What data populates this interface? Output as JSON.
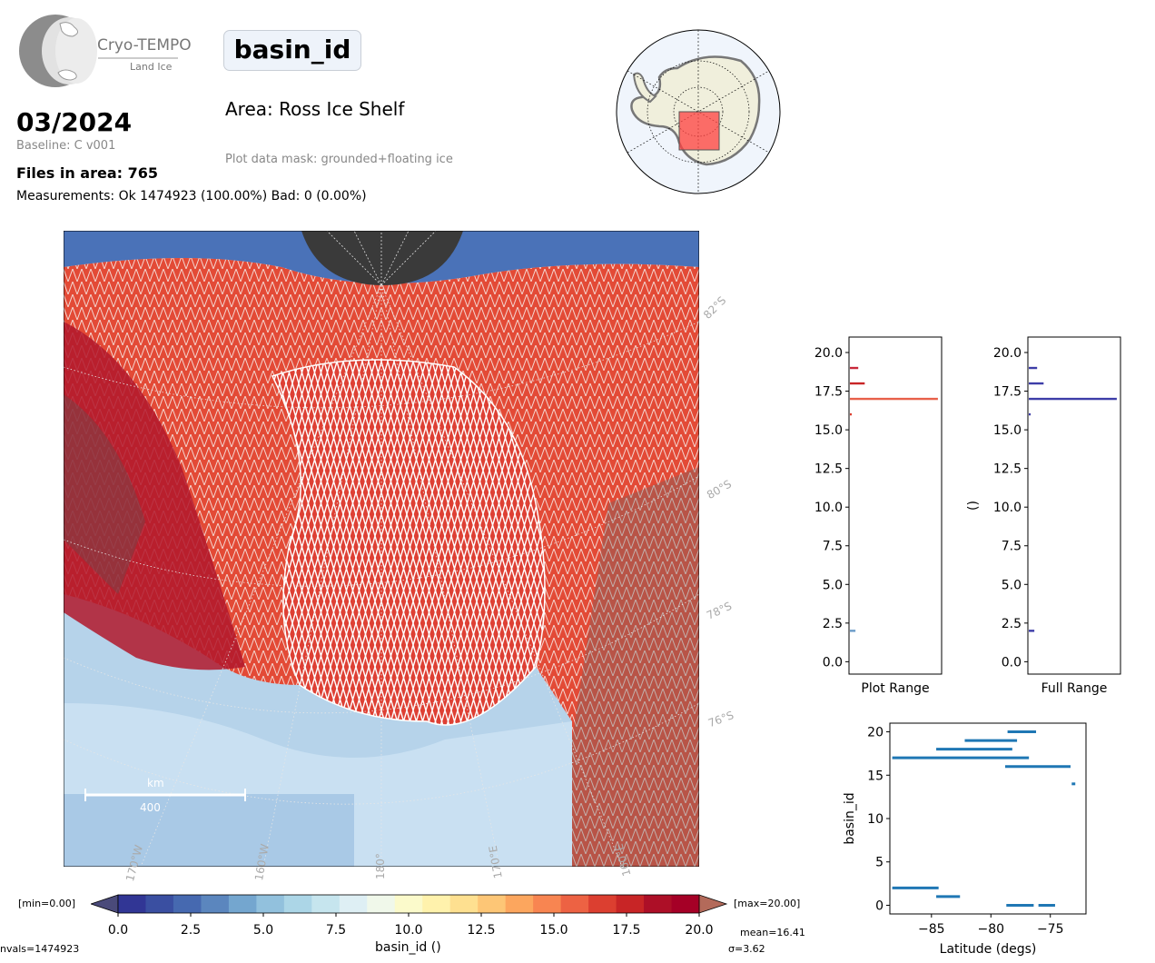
{
  "header": {
    "logo_text": "Cryo-TEMPO",
    "logo_subtext": "Land Ice",
    "variable": "basin_id",
    "date": "03/2024",
    "baseline": "Baseline: C v001",
    "files_in_area": "Files in area: 765",
    "measurements": "Measurements: Ok 1474923 (100.00%) Bad: 0 (0.00%)",
    "area": "Area: Ross Ice Shelf",
    "mask": "Plot data mask: grounded+floating ice"
  },
  "map": {
    "lat_labels": [
      "82°S",
      "80°S",
      "78°S",
      "76°S"
    ],
    "lon_labels": [
      "170°W",
      "160°W",
      "180°",
      "170°E",
      "160°E"
    ],
    "scalebar_unit": "km",
    "scalebar_value": "400"
  },
  "colorbar": {
    "min_label": "[min=0.00]",
    "max_label": "[max=20.00]",
    "ticks": [
      "0.0",
      "2.5",
      "5.0",
      "7.5",
      "10.0",
      "12.5",
      "15.0",
      "17.5",
      "20.0"
    ],
    "label": "basin_id ()",
    "colors": [
      "#313695",
      "#3a4fa1",
      "#4669b0",
      "#5b86be",
      "#74a6cf",
      "#92c1dd",
      "#acd6e7",
      "#c6e5ee",
      "#deeff4",
      "#f0f8ea",
      "#fbfacb",
      "#fff2ac",
      "#fee090",
      "#fdc676",
      "#fca65e",
      "#f88551",
      "#ed6243",
      "#dc3f30",
      "#c82526",
      "#ad0f27",
      "#a50026"
    ],
    "nvals": "nvals=1474923",
    "mean": "mean=16.41",
    "sigma": "σ=3.62"
  },
  "chart_data": [
    {
      "type": "bar",
      "orientation": "horizontal",
      "xlabel": "Plot Range",
      "ylabel": "",
      "ylim": [
        -0.8,
        21
      ],
      "yticks": [
        "0.0",
        "2.5",
        "5.0",
        "7.5",
        "10.0",
        "12.5",
        "15.0",
        "17.5",
        "20.0"
      ],
      "bars": [
        {
          "y": 2,
          "value": 0.06,
          "color": "#6a9bc8"
        },
        {
          "y": 16,
          "value": 0.02,
          "color": "#dc3f30"
        },
        {
          "y": 17,
          "value": 0.95,
          "color": "#e8604a"
        },
        {
          "y": 18,
          "value": 0.16,
          "color": "#c82526"
        },
        {
          "y": 19,
          "value": 0.09,
          "color": "#c8283a"
        }
      ]
    },
    {
      "type": "bar",
      "orientation": "horizontal",
      "xlabel": "Full Range",
      "ylabel": "()",
      "ylim": [
        -0.8,
        21
      ],
      "yticks": [
        "0.0",
        "2.5",
        "5.0",
        "7.5",
        "10.0",
        "12.5",
        "15.0",
        "17.5",
        "20.0"
      ],
      "bars": [
        {
          "y": 2,
          "value": 0.06,
          "color": "#3d3da8"
        },
        {
          "y": 16,
          "value": 0.02,
          "color": "#3d3da8"
        },
        {
          "y": 17,
          "value": 0.95,
          "color": "#3d3da8"
        },
        {
          "y": 18,
          "value": 0.16,
          "color": "#3d3da8"
        },
        {
          "y": 19,
          "value": 0.09,
          "color": "#3d3da8"
        }
      ]
    },
    {
      "type": "scatter",
      "xlabel": "Latitude (degs)",
      "ylabel": "basin_id",
      "xlim": [
        -88.5,
        -72
      ],
      "ylim": [
        -1,
        21
      ],
      "xticks": [
        -85,
        -80,
        -75
      ],
      "xtick_labels": [
        "−85",
        "−80",
        "−75"
      ],
      "yticks": [
        0,
        5,
        10,
        15,
        20
      ],
      "color": "#1f77b4",
      "segments": [
        {
          "y": 20,
          "x0": -78.6,
          "x1": -76.2
        },
        {
          "y": 19,
          "x0": -82.2,
          "x1": -77.8
        },
        {
          "y": 18,
          "x0": -84.6,
          "x1": -78.2
        },
        {
          "y": 17,
          "x0": -88.3,
          "x1": -76.8
        },
        {
          "y": 16,
          "x0": -78.8,
          "x1": -73.3
        },
        {
          "y": 14,
          "x0": -73.2,
          "x1": -72.9
        },
        {
          "y": 2,
          "x0": -88.3,
          "x1": -84.4
        },
        {
          "y": 1,
          "x0": -84.6,
          "x1": -82.6
        },
        {
          "y": 0,
          "x0": -78.7,
          "x1": -76.4
        },
        {
          "y": 0,
          "x0": -76.0,
          "x1": -74.6
        }
      ]
    }
  ]
}
